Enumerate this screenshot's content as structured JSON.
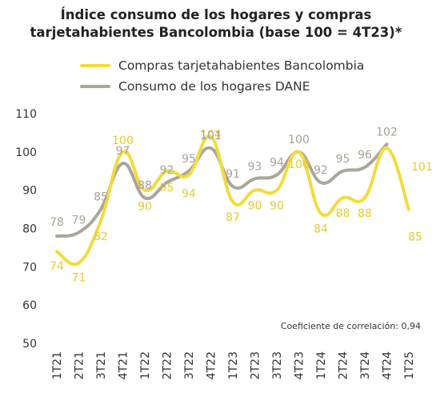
{
  "title_line1": "Índice consumo de los hogares y compras",
  "title_line2": "tarjetahabientes Bancolombia (base 100 = 4T23)*",
  "note": "Coeficiente de correlación: 0,94",
  "chart_data": {
    "type": "line",
    "categories": [
      "1T21",
      "2T21",
      "3T21",
      "4T21",
      "1T22",
      "2T22",
      "3T22",
      "4T22",
      "1T23",
      "2T23",
      "3T23",
      "4T23",
      "1T24",
      "2T24",
      "3T24",
      "4T24",
      "1T25"
    ],
    "ylim": [
      50,
      110
    ],
    "yticks": [
      50,
      60,
      70,
      80,
      90,
      100,
      110
    ],
    "legend_position": "top-left",
    "series": [
      {
        "name": "Compras tarjetahabientes Bancolombia",
        "color": "#f2dc3a",
        "label_color": "#e6cc2c",
        "values": [
          74,
          71,
          82,
          100,
          90,
          95,
          94,
          104,
          87,
          90,
          90,
          100,
          84,
          88,
          88,
          101,
          85
        ],
        "labels": [
          "74",
          "71",
          "82",
          "100",
          "90",
          "95",
          "94",
          "104",
          "87",
          "90",
          "90",
          "100",
          "84",
          "88",
          "88",
          "101",
          "85"
        ]
      },
      {
        "name": "Consumo de los hogares DANE",
        "color": "#aba59c",
        "label_color": "#a8a39a",
        "values": [
          78,
          79,
          85,
          97,
          88,
          92,
          95,
          101,
          91,
          93,
          94,
          100,
          92,
          95,
          96,
          102,
          null
        ],
        "labels": [
          "78",
          "79",
          "85",
          "97",
          "88",
          "92",
          "95",
          "101",
          "91",
          "93",
          "94",
          "100",
          "92",
          "95",
          "96",
          "102",
          ""
        ]
      }
    ]
  }
}
